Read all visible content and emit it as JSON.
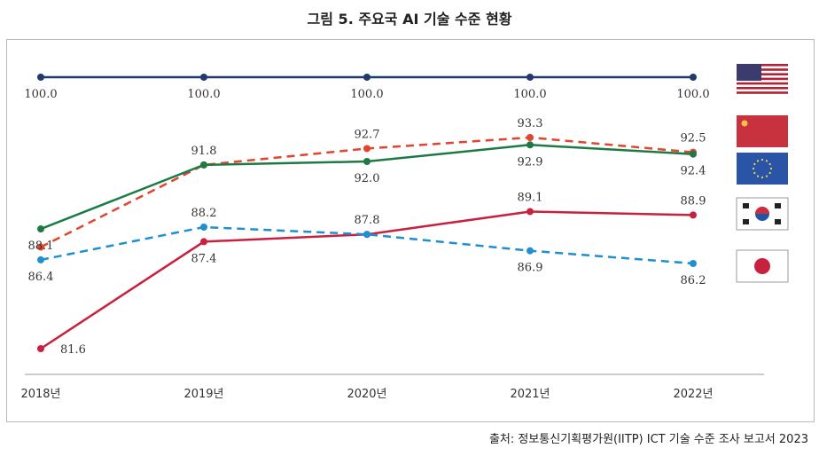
{
  "title": "그림 5. 주요국 AI 기술 수준 현황",
  "source": "출처: 정보통신기획평가원(IITP) ICT 기술 수준 조사 보고서 2023",
  "chart_data": {
    "type": "line",
    "title": "그림 5. 주요국 AI 기술 수준 현황",
    "xlabel": "",
    "ylabel": "",
    "categories": [
      "2018년",
      "2019년",
      "2020년",
      "2021년",
      "2022년"
    ],
    "ylim": [
      80,
      101
    ],
    "grid": false,
    "legend": "right (flags)",
    "series": [
      {
        "name": "미국",
        "flag": "us",
        "color": "#1f3a6b",
        "dashed": false,
        "values": [
          100.0,
          100.0,
          100.0,
          100.0,
          100.0
        ],
        "labels": [
          "100.0",
          "100.0",
          "100.0",
          "100.0",
          "100.0"
        ],
        "pos": [
          "below",
          "below",
          "below",
          "below",
          "below"
        ]
      },
      {
        "name": "중국",
        "flag": "cn",
        "color": "#e0452f",
        "dashed": true,
        "values": [
          87.1,
          91.8,
          92.7,
          93.3,
          92.5
        ],
        "labels": [
          "",
          "",
          "92.7",
          "93.3",
          "92.5"
        ],
        "pos": [
          "",
          "",
          "above",
          "above",
          "above"
        ]
      },
      {
        "name": "EU",
        "flag": "eu",
        "color": "#1e7a45",
        "dashed": false,
        "values": [
          88.1,
          91.8,
          92.0,
          92.9,
          92.4
        ],
        "labels": [
          "88.1",
          "91.8",
          "92.0",
          "92.9",
          "92.4"
        ],
        "pos": [
          "below",
          "above",
          "below",
          "below",
          "below"
        ]
      },
      {
        "name": "한국",
        "flag": "kr",
        "color": "#c8213f",
        "dashed": false,
        "values": [
          81.6,
          87.4,
          87.8,
          89.1,
          88.9
        ],
        "labels": [
          "81.6",
          "87.4",
          "",
          "89.1",
          "88.9"
        ],
        "pos": [
          "right",
          "below",
          "",
          "above",
          "above"
        ]
      },
      {
        "name": "일본",
        "flag": "jp",
        "color": "#1f8fd0",
        "dashed": true,
        "values": [
          86.4,
          88.2,
          87.8,
          86.9,
          86.2
        ],
        "labels": [
          "86.4",
          "88.2",
          "87.8",
          "86.9",
          "86.2"
        ],
        "pos": [
          "below",
          "above",
          "above",
          "below",
          "below"
        ]
      }
    ]
  }
}
